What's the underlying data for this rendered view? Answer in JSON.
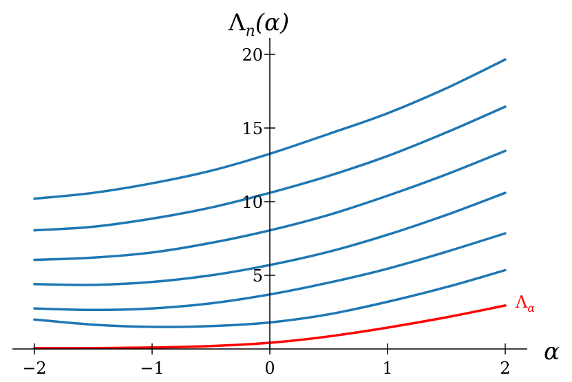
{
  "chart_data": {
    "type": "line",
    "title": "",
    "xlabel": "α",
    "ylabel": "Λ",
    "ylabel_sub": "n",
    "ylabel_arg": "(α)",
    "xlim": [
      -2.2,
      2.2
    ],
    "ylim": [
      0,
      21
    ],
    "xticks": [
      -2,
      -1,
      0,
      1,
      2
    ],
    "xtick_labels": [
      "−2",
      "−1",
      "0",
      "1",
      "2"
    ],
    "yticks": [
      5,
      10,
      15,
      20
    ],
    "ytick_labels": [
      "5",
      "10",
      "15",
      "20"
    ],
    "grid": false,
    "legend": "none",
    "x": [
      -2,
      -1.5,
      -1,
      -0.5,
      0,
      0.5,
      1,
      1.5,
      2
    ],
    "series": [
      {
        "name": "Λ",
        "name_sub": "α",
        "color": "#ff0000",
        "values": [
          0.05,
          0.06,
          0.1,
          0.2,
          0.42,
          0.85,
          1.45,
          2.15,
          2.95
        ]
      },
      {
        "color": "#1f77b4",
        "values": [
          2.0,
          1.65,
          1.5,
          1.55,
          1.8,
          2.35,
          3.2,
          4.2,
          5.35
        ]
      },
      {
        "color": "#1f77b4",
        "values": [
          2.75,
          2.65,
          2.75,
          3.1,
          3.7,
          4.5,
          5.45,
          6.6,
          7.85
        ]
      },
      {
        "color": "#1f77b4",
        "values": [
          4.4,
          4.35,
          4.55,
          5.0,
          5.7,
          6.6,
          7.75,
          9.1,
          10.6
        ]
      },
      {
        "color": "#1f77b4",
        "values": [
          6.05,
          6.2,
          6.55,
          7.2,
          8.05,
          9.1,
          10.4,
          11.85,
          13.45
        ]
      },
      {
        "color": "#1f77b4",
        "values": [
          8.05,
          8.3,
          8.85,
          9.6,
          10.6,
          11.75,
          13.1,
          14.7,
          16.45
        ]
      },
      {
        "color": "#1f77b4",
        "values": [
          10.2,
          10.6,
          11.25,
          12.1,
          13.25,
          14.6,
          16.0,
          17.7,
          19.65
        ]
      }
    ]
  }
}
